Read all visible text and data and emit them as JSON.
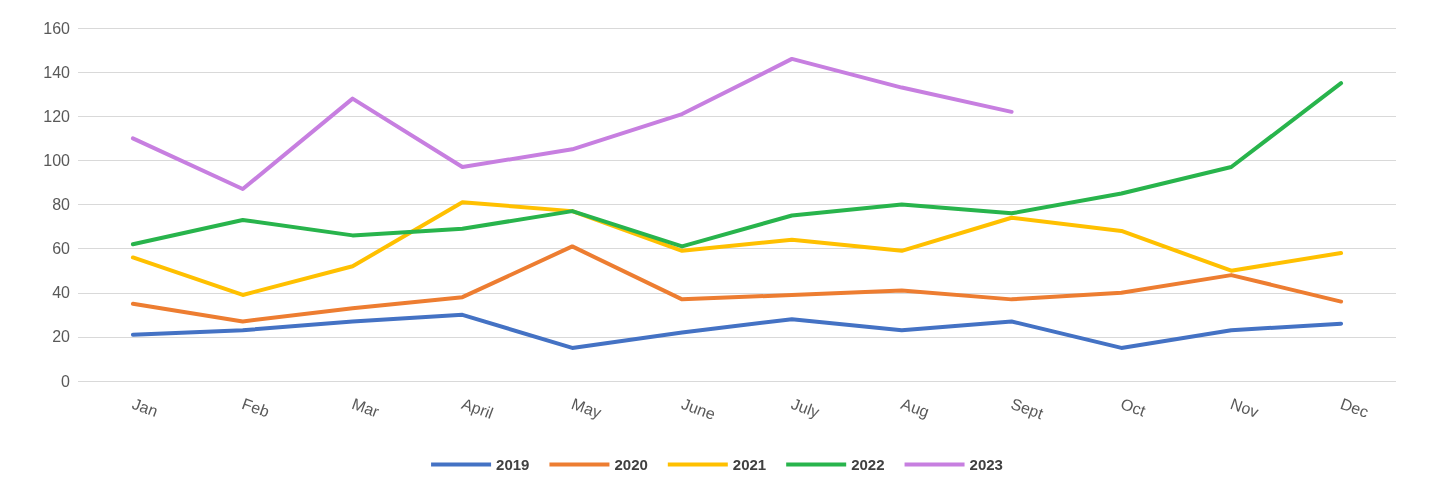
{
  "chart_data": {
    "type": "line",
    "categories": [
      "Jan",
      "Feb",
      "Mar",
      "April",
      "May",
      "June",
      "July",
      "Aug",
      "Sept",
      "Oct",
      "Nov",
      "Dec"
    ],
    "series": [
      {
        "name": "2019",
        "color": "#4472c4",
        "values": [
          21,
          23,
          27,
          30,
          15,
          22,
          28,
          23,
          27,
          15,
          23,
          26
        ]
      },
      {
        "name": "2020",
        "color": "#ed7d31",
        "values": [
          35,
          27,
          33,
          38,
          61,
          37,
          39,
          41,
          37,
          40,
          48,
          36
        ]
      },
      {
        "name": "2021",
        "color": "#ffc000",
        "values": [
          56,
          39,
          52,
          81,
          77,
          59,
          64,
          59,
          74,
          68,
          50,
          58
        ]
      },
      {
        "name": "2022",
        "color": "#28b44c",
        "values": [
          62,
          73,
          66,
          69,
          77,
          61,
          75,
          80,
          76,
          85,
          97,
          135
        ]
      },
      {
        "name": "2023",
        "color": "#c77fe0",
        "values": [
          110,
          87,
          128,
          97,
          105,
          121,
          146,
          133,
          122,
          null,
          null,
          null
        ]
      }
    ],
    "ylim": [
      0,
      160
    ],
    "yticks": [
      0,
      20,
      40,
      60,
      80,
      100,
      120,
      140,
      160
    ],
    "grid": "y",
    "legend": "bottom",
    "marker": "none",
    "line_style": "solid"
  }
}
